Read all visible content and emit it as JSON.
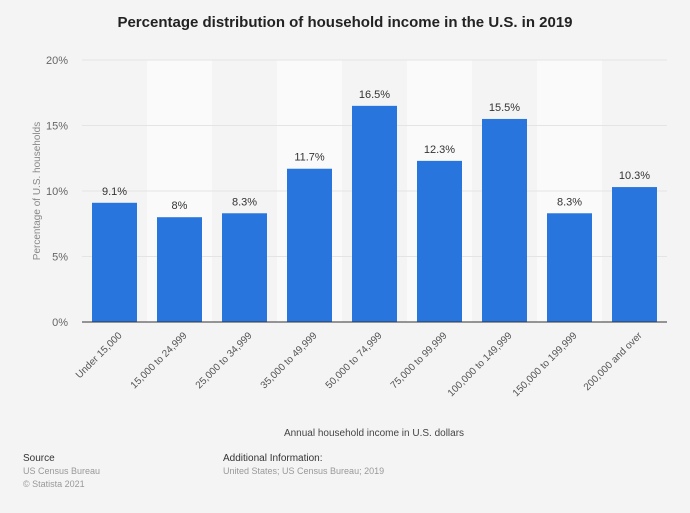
{
  "chart_data": {
    "type": "bar",
    "title": "Percentage distribution of household income in the U.S. in 2019",
    "xlabel": "Annual household income in U.S. dollars",
    "ylabel": "Percentage of U.S. households",
    "categories": [
      "Under 15,000",
      "15,000 to 24,999",
      "25,000 to 34,999",
      "35,000 to 49,999",
      "50,000 to 74,999",
      "75,000 to 99,999",
      "100,000 to 149,999",
      "150,000 to 199,999",
      "200,000 and over"
    ],
    "values": [
      9.1,
      8,
      8.3,
      11.7,
      16.5,
      12.3,
      15.5,
      8.3,
      10.3
    ],
    "data_labels": [
      "9.1%",
      "8%",
      "8.3%",
      "11.7%",
      "16.5%",
      "12.3%",
      "15.5%",
      "8.3%",
      "10.3%"
    ],
    "yticks": [
      "0%",
      "5%",
      "10%",
      "15%",
      "20%"
    ],
    "ylim": [
      0,
      20
    ],
    "grid": true,
    "bar_color": "#2876dd"
  },
  "footer": {
    "source_heading": "Source",
    "source": "US Census Bureau",
    "copyright": "© Statista 2021",
    "additional_heading": "Additional Information:",
    "additional": "United States; US Census Bureau; 2019"
  }
}
